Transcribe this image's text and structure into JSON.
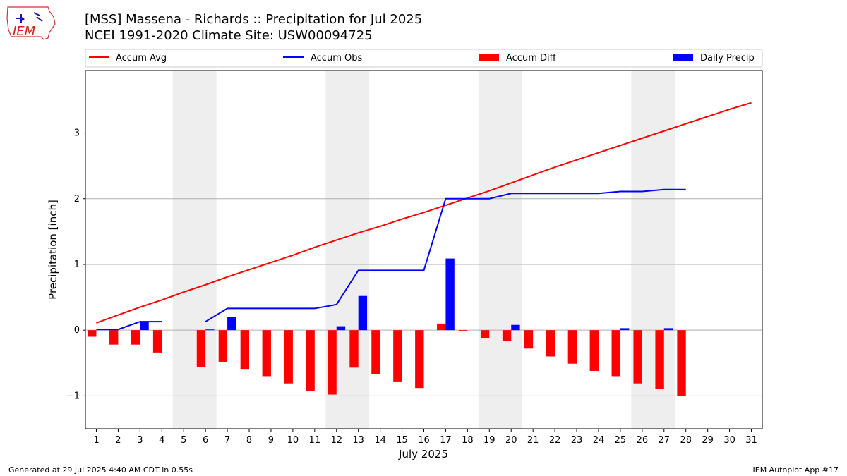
{
  "header": {
    "title_line1": "[MSS] Massena - Richards :: Precipitation for Jul 2025",
    "title_line2": "NCEI 1991-2020 Climate Site: USW00094725",
    "logo_text": "IEM"
  },
  "footer": {
    "generated": "Generated at 29 Jul 2025 4:40 AM CDT in 0.55s",
    "app": "IEM Autoplot App #17"
  },
  "colors": {
    "accum_avg": "#ff0000",
    "accum_obs": "#0000ff",
    "accum_diff": "#ff0000",
    "daily_precip": "#0000ff",
    "weekend_shade": "#eeeeee",
    "grid": "#b0b0b0"
  },
  "chart_data": {
    "type": "bar",
    "xlabel": "July 2025",
    "ylabel": "Precipitation [inch]",
    "xlim": [
      0.5,
      31.5
    ],
    "ylim": [
      -1.5,
      3.95
    ],
    "yticks": [
      -1,
      0,
      1,
      2,
      3
    ],
    "ytick_labels": [
      "−1",
      "0",
      "1",
      "2",
      "3"
    ],
    "grid": "horizontal",
    "legend_position": "top",
    "days": [
      1,
      2,
      3,
      4,
      5,
      6,
      7,
      8,
      9,
      10,
      11,
      12,
      13,
      14,
      15,
      16,
      17,
      18,
      19,
      20,
      21,
      22,
      23,
      24,
      25,
      26,
      27,
      28,
      29,
      30,
      31
    ],
    "weekend_days": [
      [
        5,
        6
      ],
      [
        12,
        13
      ],
      [
        19,
        20
      ],
      [
        26,
        27
      ]
    ],
    "series": [
      {
        "name": "Accum Avg",
        "type": "line",
        "x": [
          1,
          2,
          3,
          4,
          5,
          6,
          7,
          8,
          9,
          10,
          11,
          12,
          13,
          14,
          15,
          16,
          17,
          18,
          19,
          20,
          21,
          22,
          23,
          24,
          25,
          26,
          27,
          28,
          29,
          30,
          31
        ],
        "values": [
          0.11,
          0.23,
          0.35,
          0.46,
          0.58,
          0.69,
          0.81,
          0.92,
          1.03,
          1.14,
          1.26,
          1.37,
          1.48,
          1.58,
          1.69,
          1.79,
          1.9,
          2.01,
          2.12,
          2.24,
          2.36,
          2.48,
          2.59,
          2.7,
          2.81,
          2.92,
          3.03,
          3.14,
          3.25,
          3.36,
          3.46
        ]
      },
      {
        "name": "Accum Obs",
        "type": "line",
        "x": [
          1,
          2,
          3,
          4,
          6,
          7,
          8,
          9,
          10,
          11,
          12,
          13,
          14,
          15,
          16,
          17,
          18,
          19,
          20,
          21,
          22,
          23,
          24,
          25,
          26,
          27,
          28
        ],
        "values": [
          0.01,
          0.01,
          0.13,
          0.13,
          0.13,
          0.33,
          0.33,
          0.33,
          0.33,
          0.33,
          0.39,
          0.91,
          0.91,
          0.91,
          0.91,
          2.0,
          2.0,
          2.0,
          2.08,
          2.08,
          2.08,
          2.08,
          2.08,
          2.11,
          2.11,
          2.14,
          2.14
        ],
        "gap_after_day": 4
      },
      {
        "name": "Accum Diff",
        "type": "bar",
        "x": [
          1,
          2,
          3,
          4,
          6,
          7,
          8,
          9,
          10,
          11,
          12,
          13,
          14,
          15,
          16,
          17,
          18,
          19,
          20,
          21,
          22,
          23,
          24,
          25,
          26,
          27,
          28
        ],
        "values": [
          -0.1,
          -0.22,
          -0.22,
          -0.34,
          -0.56,
          -0.48,
          -0.59,
          -0.7,
          -0.81,
          -0.93,
          -0.98,
          -0.57,
          -0.67,
          -0.78,
          -0.88,
          0.1,
          -0.01,
          -0.12,
          -0.16,
          -0.28,
          -0.4,
          -0.51,
          -0.62,
          -0.7,
          -0.81,
          -0.89,
          -1.0
        ]
      },
      {
        "name": "Daily Precip",
        "type": "bar",
        "x": [
          3,
          6,
          7,
          12,
          13,
          17,
          20,
          25,
          27
        ],
        "values": [
          0.12,
          0.01,
          0.2,
          0.06,
          0.52,
          1.09,
          0.08,
          0.03,
          0.03
        ]
      }
    ]
  }
}
